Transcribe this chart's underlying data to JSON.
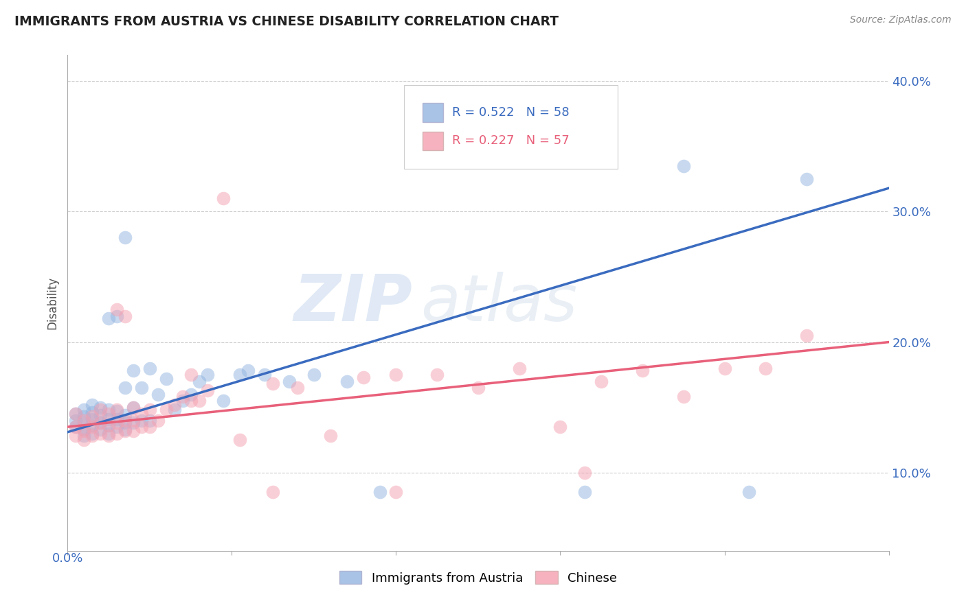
{
  "title": "IMMIGRANTS FROM AUSTRIA VS CHINESE DISABILITY CORRELATION CHART",
  "source": "Source: ZipAtlas.com",
  "ylabel": "Disability",
  "xlim": [
    0.0,
    0.1
  ],
  "ylim": [
    0.04,
    0.42
  ],
  "blue_R": 0.522,
  "blue_N": 58,
  "pink_R": 0.227,
  "pink_N": 57,
  "blue_color": "#92b4e0",
  "pink_color": "#f4a0b0",
  "blue_line_color": "#3a6bbf",
  "pink_line_color": "#e8607a",
  "legend_label_blue": "Immigrants from Austria",
  "legend_label_pink": "Chinese",
  "watermark_zip": "ZIP",
  "watermark_atlas": "atlas",
  "yticks": [
    0.1,
    0.2,
    0.3,
    0.4
  ],
  "ytick_labels": [
    "10.0%",
    "20.0%",
    "30.0%",
    "40.0%"
  ],
  "blue_line_x0": 0.0,
  "blue_line_y0": 0.131,
  "blue_line_x1": 0.1,
  "blue_line_y1": 0.318,
  "pink_line_x0": 0.0,
  "pink_line_y0": 0.135,
  "pink_line_x1": 0.1,
  "pink_line_y1": 0.2,
  "blue_scatter_x": [
    0.001,
    0.001,
    0.001,
    0.002,
    0.002,
    0.002,
    0.002,
    0.002,
    0.003,
    0.003,
    0.003,
    0.003,
    0.003,
    0.004,
    0.004,
    0.004,
    0.004,
    0.005,
    0.005,
    0.005,
    0.005,
    0.005,
    0.006,
    0.006,
    0.006,
    0.006,
    0.007,
    0.007,
    0.007,
    0.007,
    0.007,
    0.008,
    0.008,
    0.008,
    0.009,
    0.009,
    0.01,
    0.01,
    0.011,
    0.012,
    0.013,
    0.014,
    0.015,
    0.016,
    0.017,
    0.019,
    0.021,
    0.022,
    0.024,
    0.027,
    0.03,
    0.034,
    0.038,
    0.056,
    0.063,
    0.075,
    0.083,
    0.09
  ],
  "blue_scatter_y": [
    0.135,
    0.14,
    0.145,
    0.128,
    0.133,
    0.138,
    0.143,
    0.148,
    0.13,
    0.136,
    0.141,
    0.146,
    0.152,
    0.133,
    0.138,
    0.144,
    0.15,
    0.13,
    0.136,
    0.141,
    0.148,
    0.218,
    0.135,
    0.141,
    0.147,
    0.22,
    0.133,
    0.138,
    0.144,
    0.165,
    0.28,
    0.138,
    0.15,
    0.178,
    0.14,
    0.165,
    0.14,
    0.18,
    0.16,
    0.172,
    0.148,
    0.155,
    0.16,
    0.17,
    0.175,
    0.155,
    0.175,
    0.178,
    0.175,
    0.17,
    0.175,
    0.17,
    0.085,
    0.37,
    0.085,
    0.335,
    0.085,
    0.325
  ],
  "pink_scatter_x": [
    0.001,
    0.001,
    0.001,
    0.002,
    0.002,
    0.002,
    0.003,
    0.003,
    0.003,
    0.004,
    0.004,
    0.004,
    0.005,
    0.005,
    0.005,
    0.006,
    0.006,
    0.006,
    0.006,
    0.007,
    0.007,
    0.007,
    0.008,
    0.008,
    0.008,
    0.009,
    0.009,
    0.01,
    0.01,
    0.011,
    0.012,
    0.013,
    0.014,
    0.015,
    0.015,
    0.016,
    0.017,
    0.019,
    0.021,
    0.025,
    0.028,
    0.032,
    0.036,
    0.04,
    0.045,
    0.05,
    0.055,
    0.06,
    0.065,
    0.07,
    0.075,
    0.08,
    0.085,
    0.09,
    0.04,
    0.025,
    0.063
  ],
  "pink_scatter_y": [
    0.128,
    0.135,
    0.145,
    0.125,
    0.132,
    0.14,
    0.128,
    0.135,
    0.143,
    0.13,
    0.138,
    0.148,
    0.128,
    0.136,
    0.145,
    0.13,
    0.138,
    0.148,
    0.225,
    0.132,
    0.14,
    0.22,
    0.132,
    0.14,
    0.15,
    0.135,
    0.145,
    0.135,
    0.148,
    0.14,
    0.148,
    0.152,
    0.158,
    0.155,
    0.175,
    0.155,
    0.163,
    0.31,
    0.125,
    0.168,
    0.165,
    0.128,
    0.173,
    0.175,
    0.175,
    0.165,
    0.18,
    0.135,
    0.17,
    0.178,
    0.158,
    0.18,
    0.18,
    0.205,
    0.085,
    0.085,
    0.1
  ]
}
